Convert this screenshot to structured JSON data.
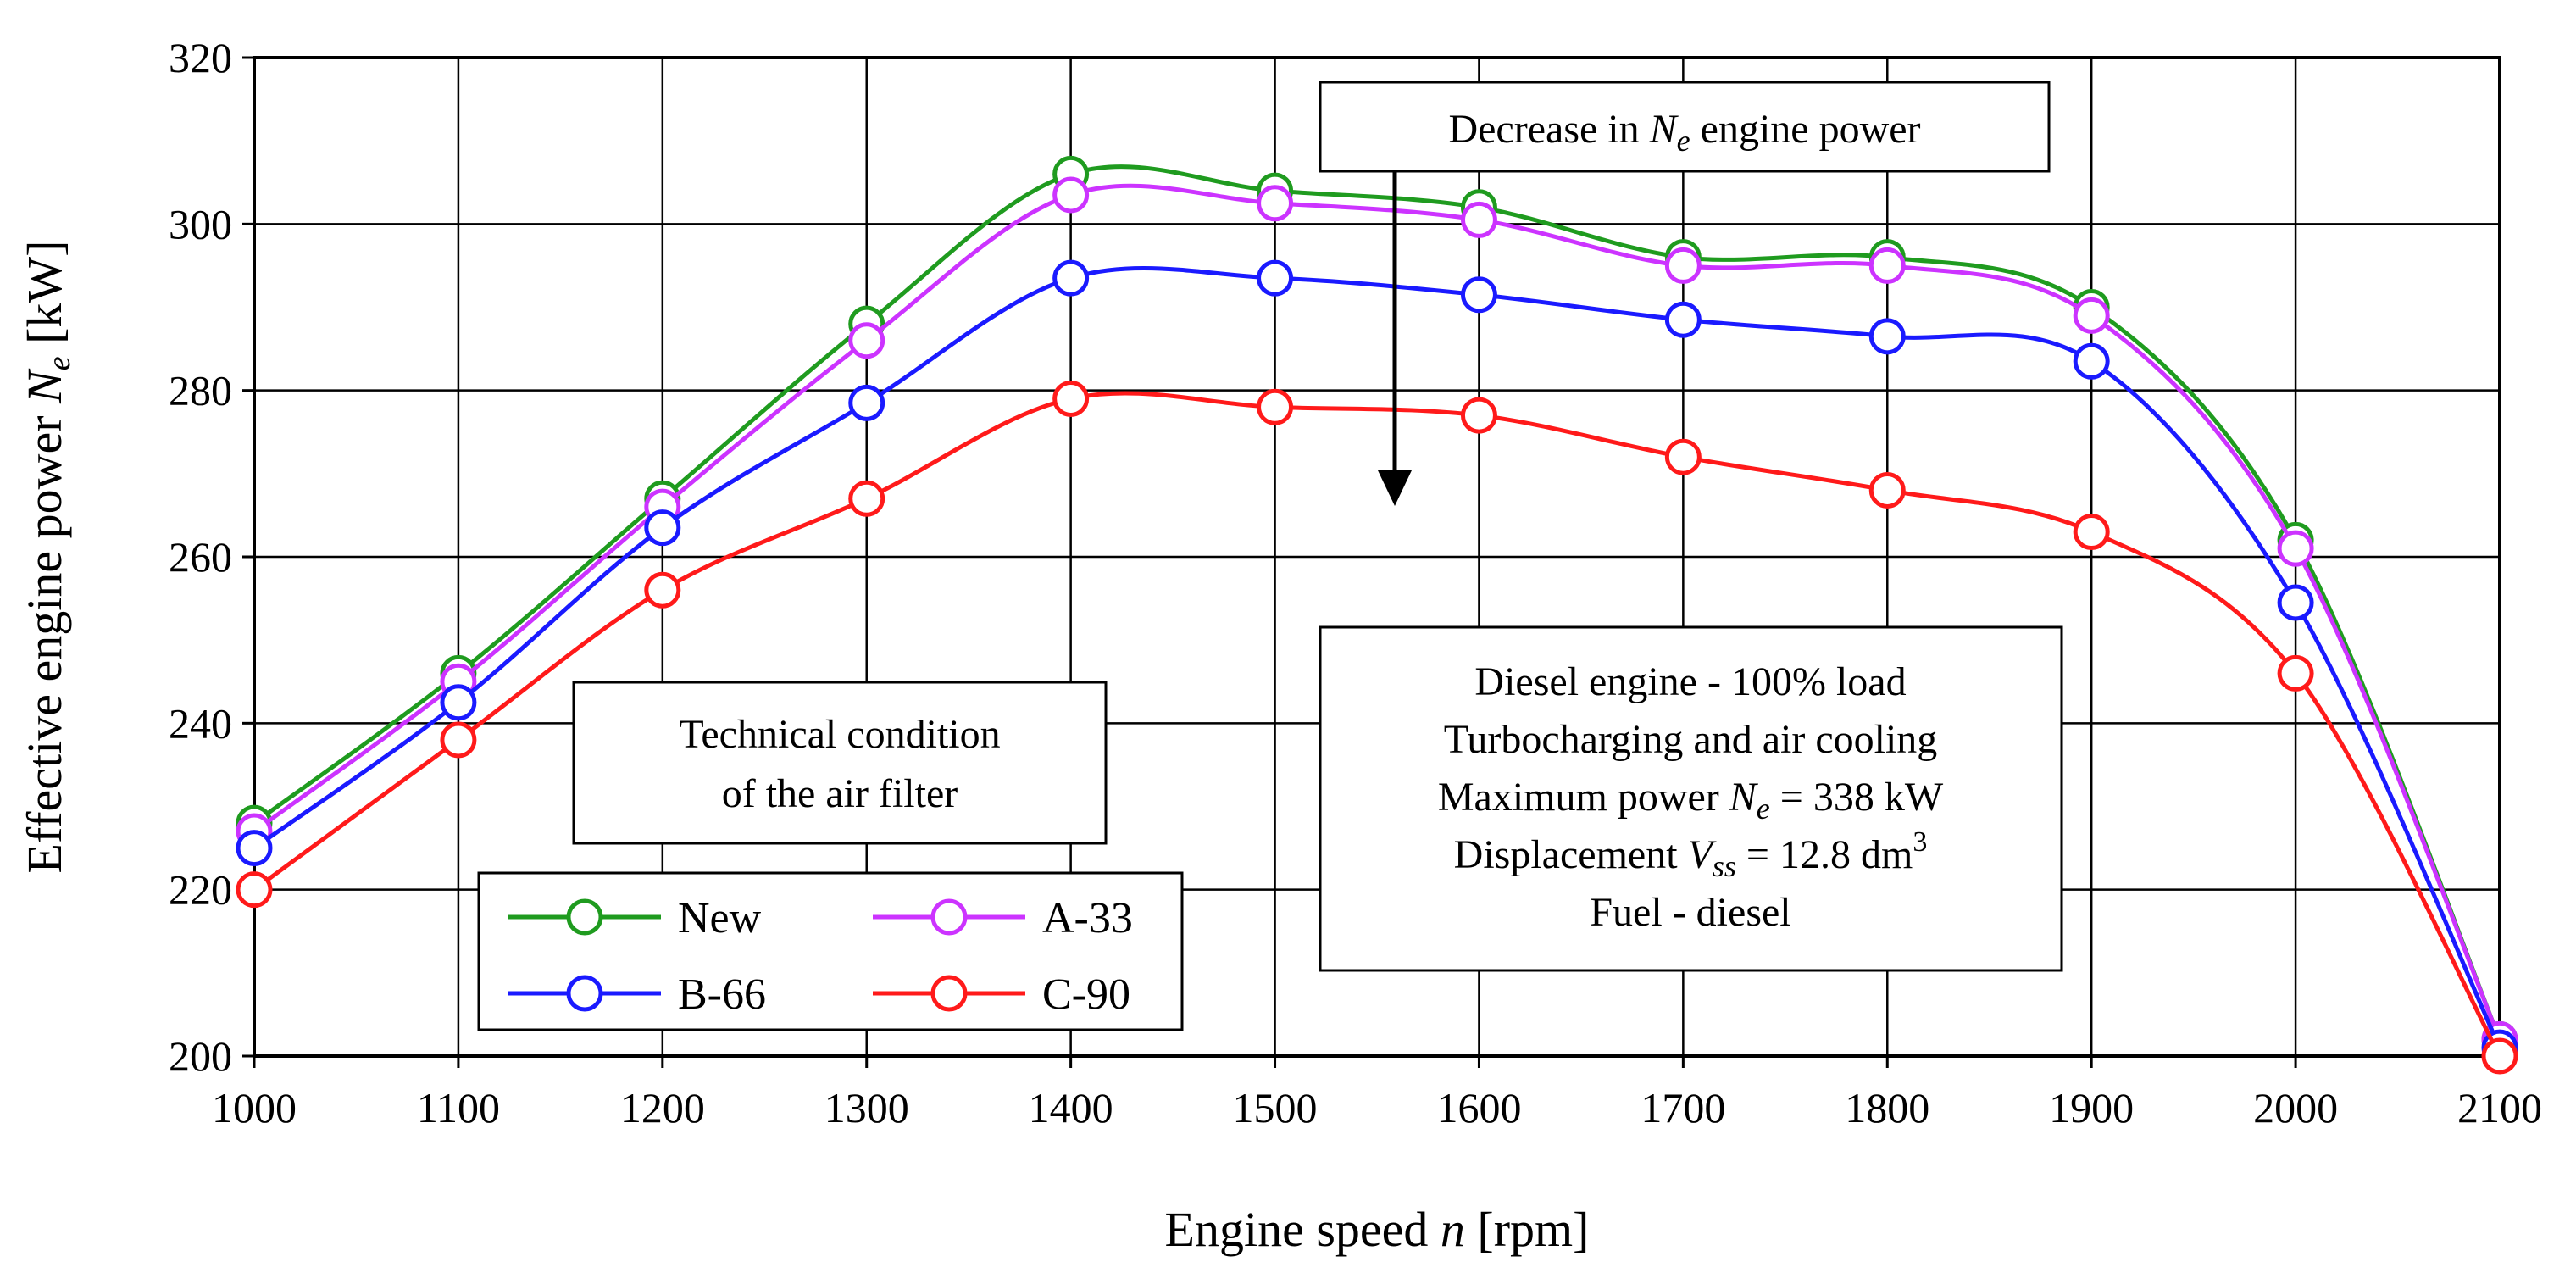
{
  "chart_data": {
    "type": "line",
    "xlabel_prefix": "Engine speed ",
    "xlabel_var": "n",
    "xlabel_suffix": " [rpm]",
    "ylabel_prefix": "Effective engine power ",
    "ylabel_var": "N",
    "ylabel_sub": "e",
    "ylabel_suffix": " [kW]",
    "xlim": [
      1000,
      2100
    ],
    "ylim": [
      200,
      320
    ],
    "x_ticks": [
      1000,
      1100,
      1200,
      1300,
      1400,
      1500,
      1600,
      1700,
      1800,
      1900,
      2000,
      2100
    ],
    "y_ticks": [
      200,
      220,
      240,
      260,
      280,
      300,
      320
    ],
    "grid": true,
    "x": [
      1000,
      1100,
      1200,
      1300,
      1400,
      1500,
      1600,
      1700,
      1800,
      1900,
      2000,
      2100
    ],
    "series": [
      {
        "name": "New",
        "color": "#1f9b1f",
        "values": [
          228,
          246,
          267,
          288,
          306,
          304,
          302,
          296,
          296,
          290,
          262,
          202
        ]
      },
      {
        "name": "A-33",
        "color": "#cc33ff",
        "values": [
          227,
          245,
          266,
          286,
          303.5,
          302.5,
          300.5,
          295,
          295,
          289,
          261,
          202
        ]
      },
      {
        "name": "B-66",
        "color": "#1a1aff",
        "values": [
          225,
          242.5,
          263.5,
          278.5,
          293.5,
          293.5,
          291.5,
          288.5,
          286.5,
          283.5,
          254.5,
          201
        ]
      },
      {
        "name": "C-90",
        "color": "#ff1a1a",
        "values": [
          220,
          238,
          256,
          267,
          279,
          278,
          277,
          272,
          268,
          263,
          246,
          200
        ]
      }
    ],
    "annotations": {
      "decrease_prefix": "Decrease in ",
      "decrease_var": "N",
      "decrease_sub": "e",
      "decrease_suffix": " engine power",
      "filter_line1": "Technical condition",
      "filter_line2": "of the air filter",
      "spec_line1": "Diesel engine - 100% load",
      "spec_line2": "Turbocharging and air cooling",
      "spec_line3_prefix": "Maximum power ",
      "spec_line3_var": "N",
      "spec_line3_sub": "e",
      "spec_line3_suffix": " = 338 kW",
      "spec_line4_prefix": "Displacement ",
      "spec_line4_var": "V",
      "spec_line4_sub": "ss",
      "spec_line4_suffix": " = 12.8 dm",
      "spec_line4_sup": "3",
      "spec_line5": "Fuel - diesel"
    }
  }
}
